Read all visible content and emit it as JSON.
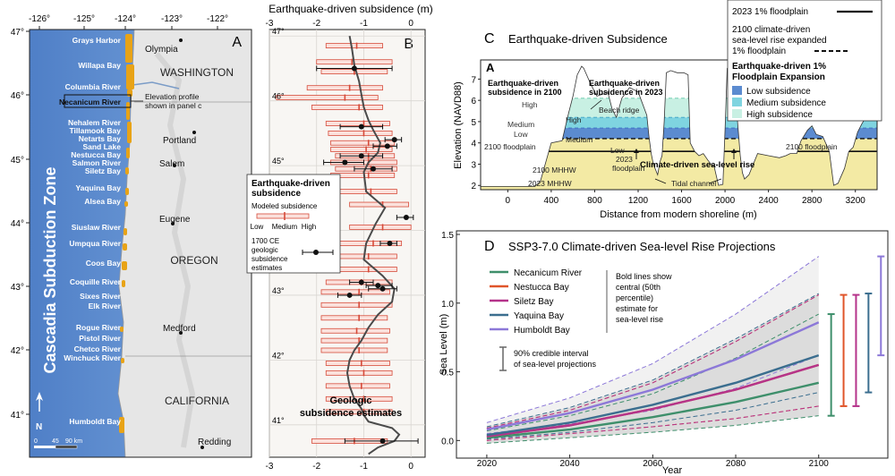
{
  "panel_a": {
    "label": "A",
    "lon_ticks": [
      "-126°",
      "-125°",
      "-124°",
      "-123°",
      "-122°"
    ],
    "lat_ticks": [
      "47°",
      "46°",
      "45°",
      "44°",
      "43°",
      "42°",
      "41°"
    ],
    "zone_label": "Cascadia Subduction Zone",
    "states": [
      "WASHINGTON",
      "OREGON",
      "CALIFORNIA"
    ],
    "cities": [
      {
        "name": "Olympia"
      },
      {
        "name": "Portland"
      },
      {
        "name": "Salem"
      },
      {
        "name": "Eugene"
      },
      {
        "name": "Medford"
      },
      {
        "name": "Redding"
      }
    ],
    "estuaries": [
      "Grays Harbor",
      "Willapa Bay",
      "Columbia River",
      "Necanicum River",
      "Nehalem River",
      "Tillamook Bay",
      "Netarts Bay",
      "Sand Lake",
      "Nestucca Bay",
      "Salmon River",
      "Siletz Bay",
      "Yaquina Bay",
      "Alsea Bay",
      "Siuslaw River",
      "Umpqua River",
      "Coos Bay",
      "Coquille River",
      "Sixes River",
      "Elk River",
      "Rogue River",
      "Pistol River",
      "Chetco River",
      "Winchuck River",
      "Humboldt Bay"
    ],
    "profile_note": "Elevation profile shown in panel c",
    "north": "N",
    "scale": [
      "0",
      "45",
      "90 km"
    ]
  },
  "panel_b": {
    "label": "B",
    "title": "Earthquake-driven subsidence (m)",
    "x_ticks": [
      "-3",
      "-2",
      "-1",
      "0"
    ],
    "legend_title": "Earthquake-driven subsidence",
    "legend_modeled": "Modeled subsidence",
    "legend_low": "Low",
    "legend_medium": "Medium",
    "legend_high": "High",
    "legend_geologic": "1700 CE geologic subsidence estimates",
    "annotation": "Geologic subsidence estimates"
  },
  "panel_c": {
    "label": "C",
    "title": "Earthquake-driven Subsidence",
    "ylabel": "Elevation (NAVD88)",
    "xlabel": "Distance from modern shoreline (m)",
    "end_a": "A",
    "end_b": "A’",
    "ann_2100": "Earthquake-driven subsidence in 2100",
    "ann_2023": "Earthquake-driven subsidence in 2023",
    "high": "High",
    "high2": "High",
    "medium": "Medium",
    "medium2": "Medium",
    "low": "Low",
    "low2": "Low",
    "beach_ridge": "Beach ridge",
    "floodplain_2100_left": "2100 floodplain",
    "floodplain_2100_right": "2100 floodplain",
    "floodplain_2023": "2023 floodplain",
    "slr": "Climate-driven sea-level rise",
    "mhhw_2100": "2100 MHHW",
    "mhhw_2023": "2023 MHHW",
    "tidal_channel": "Tidal channel",
    "legend": {
      "floodplain_2023": "2023 1% floodplain",
      "floodplain_2100": "2100 climate-driven sea-level rise expanded 1% floodplain",
      "expansion_title": "Earthquake-driven 1% Floodplain Expansion",
      "low": "Low subsidence",
      "medium": "Medium subsidence",
      "high": "High subsidence"
    }
  },
  "panel_d": {
    "label": "D",
    "legend_note": "Bold lines show central (50th percentile) estimate for sea-level rise",
    "interval_note": "90% credible interval of sea-level projections"
  },
  "colors": {
    "ocean": "#5b8fcf",
    "land": "#e8e8e8",
    "estuary": "#e8a317",
    "subsidence_bar": "#d64b3a",
    "low_fill": "#5b8bd0",
    "medium_fill": "#7fd4e0",
    "high_fill": "#c8f0e3",
    "ground_fill": "#f3eaa4"
  },
  "chart_data": [
    {
      "type": "line",
      "id": "panel_b_profile",
      "title": "Earthquake-driven subsidence (m)",
      "xlim": [
        -3,
        0.3
      ],
      "ylim": [
        40.5,
        47.1
      ],
      "y_ticks": [
        41,
        42,
        43,
        44,
        45,
        46,
        47
      ],
      "modeled_line": {
        "x": [
          -1.3,
          -1.25,
          -1.2,
          -1.1,
          -1.05,
          -1.0,
          -0.9,
          -0.8,
          -0.65,
          -0.7,
          -0.9,
          -1.0,
          -0.95,
          -0.55,
          -0.75,
          -0.95,
          -1.0,
          -0.6,
          -0.35,
          -0.4,
          -0.7,
          -0.9,
          -1.05,
          -1.2,
          -1.3,
          -1.35,
          -1.3,
          -1.2,
          -1.1,
          -1.05,
          -1.0,
          -0.9,
          -0.4,
          -0.25,
          -0.35,
          -0.7,
          -0.9
        ],
        "y": [
          47.0,
          46.8,
          46.55,
          46.3,
          46.1,
          45.9,
          45.7,
          45.55,
          45.35,
          45.2,
          45.05,
          44.9,
          44.6,
          44.35,
          44.1,
          43.8,
          43.55,
          43.3,
          43.1,
          42.9,
          42.7,
          42.5,
          42.3,
          42.15,
          42.0,
          41.8,
          41.6,
          41.4,
          41.3,
          41.25,
          41.15,
          41.05,
          40.95,
          40.85,
          40.75,
          40.65,
          40.55
        ]
      },
      "modeled_ranges": [
        {
          "lat": 46.85,
          "low": -1.8,
          "med": -1.15,
          "high": -0.6
        },
        {
          "lat": 46.6,
          "low": -2.0,
          "med": -1.25,
          "high": -0.4
        },
        {
          "lat": 46.45,
          "low": -1.9,
          "med": -1.2,
          "high": -0.5
        },
        {
          "lat": 46.2,
          "low": -2.2,
          "med": -1.3,
          "high": -0.6
        },
        {
          "lat": 46.05,
          "low": -2.85,
          "med": -1.4,
          "high": -0.7
        },
        {
          "lat": 45.9,
          "low": -2.1,
          "med": -1.1,
          "high": -0.6
        },
        {
          "lat": 45.65,
          "low": -1.8,
          "med": -1.0,
          "high": -0.45
        },
        {
          "lat": 45.5,
          "low": -1.75,
          "med": -1.0,
          "high": -0.4
        },
        {
          "lat": 45.35,
          "low": -1.7,
          "med": -0.9,
          "high": -0.35
        },
        {
          "lat": 45.25,
          "low": -1.7,
          "med": -0.95,
          "high": -0.4
        },
        {
          "lat": 45.15,
          "low": -1.6,
          "med": -0.9,
          "high": -0.35
        },
        {
          "lat": 45.05,
          "low": -1.7,
          "med": -0.9,
          "high": -0.3
        },
        {
          "lat": 44.95,
          "low": -1.6,
          "med": -0.85,
          "high": -0.3
        },
        {
          "lat": 44.85,
          "low": -1.7,
          "med": -0.9,
          "high": -0.35
        },
        {
          "lat": 44.6,
          "low": -1.6,
          "med": -0.85,
          "high": -0.3
        },
        {
          "lat": 44.4,
          "low": -1.3,
          "med": -0.6,
          "high": -0.05
        },
        {
          "lat": 44.05,
          "low": -1.3,
          "med": -0.6,
          "high": 0.0
        },
        {
          "lat": 43.8,
          "low": -1.6,
          "med": -0.8,
          "high": -0.2
        },
        {
          "lat": 43.6,
          "low": -1.7,
          "med": -0.9,
          "high": -0.3
        },
        {
          "lat": 43.4,
          "low": -1.6,
          "med": -0.9,
          "high": -0.3
        },
        {
          "lat": 43.2,
          "low": -1.8,
          "med": -1.05,
          "high": -0.4
        },
        {
          "lat": 43.05,
          "low": -1.9,
          "med": -1.1,
          "high": -0.45
        },
        {
          "lat": 42.85,
          "low": -1.9,
          "med": -1.1,
          "high": -0.4
        },
        {
          "lat": 42.65,
          "low": -1.9,
          "med": -1.1,
          "high": -0.5
        },
        {
          "lat": 42.45,
          "low": -1.9,
          "med": -1.15,
          "high": -0.45
        },
        {
          "lat": 42.3,
          "low": -1.9,
          "med": -1.1,
          "high": -0.5
        },
        {
          "lat": 42.15,
          "low": -1.9,
          "med": -1.1,
          "high": -0.5
        },
        {
          "lat": 41.95,
          "low": -1.8,
          "med": -1.05,
          "high": -0.45
        },
        {
          "lat": 41.8,
          "low": -1.8,
          "med": -1.0,
          "high": -0.4
        },
        {
          "lat": 41.6,
          "low": -1.8,
          "med": -1.05,
          "high": -0.45
        },
        {
          "lat": 41.4,
          "low": -1.8,
          "med": -1.0,
          "high": -0.4
        },
        {
          "lat": 41.2,
          "low": -1.8,
          "med": -1.0,
          "high": -0.4
        },
        {
          "lat": 40.75,
          "low": -2.1,
          "med": -1.2,
          "high": -0.5
        }
      ],
      "geologic_estimates": [
        {
          "lat": 46.5,
          "value": -1.2,
          "low": -2.0,
          "high": -0.4
        },
        {
          "lat": 45.6,
          "value": -1.05,
          "low": -1.5,
          "high": -0.6
        },
        {
          "lat": 45.4,
          "value": -0.35,
          "low": -0.55,
          "high": -0.2
        },
        {
          "lat": 45.3,
          "value": -0.5,
          "low": -0.8,
          "high": -0.3
        },
        {
          "lat": 45.15,
          "value": -1.05,
          "low": -1.5,
          "high": -0.6
        },
        {
          "lat": 45.05,
          "value": -1.4,
          "low": -1.85,
          "high": -1.0
        },
        {
          "lat": 44.95,
          "value": -0.8,
          "low": -1.2,
          "high": -0.4
        },
        {
          "lat": 44.2,
          "value": -0.1,
          "low": -0.3,
          "high": 0.05
        },
        {
          "lat": 43.8,
          "value": -0.45,
          "low": -0.65,
          "high": -0.3
        },
        {
          "lat": 43.2,
          "value": -1.05,
          "low": -1.3,
          "high": -0.8
        },
        {
          "lat": 43.15,
          "value": -0.7,
          "low": -0.95,
          "high": -0.4
        },
        {
          "lat": 43.1,
          "value": -0.6,
          "low": -0.9,
          "high": -0.3
        },
        {
          "lat": 43.0,
          "value": -1.3,
          "low": -1.55,
          "high": -1.05
        },
        {
          "lat": 40.75,
          "value": -0.6,
          "low": -1.4,
          "high": 0.15
        }
      ]
    },
    {
      "type": "area",
      "id": "panel_c_profile",
      "title": "Earthquake-driven Subsidence",
      "xlabel": "Distance from modern shoreline (m)",
      "ylabel": "Elevation (NAVD88)",
      "xlim": [
        -250,
        3400
      ],
      "ylim": [
        1.8,
        7.9
      ],
      "x_ticks": [
        0,
        400,
        800,
        1200,
        1600,
        2000,
        2400,
        2800,
        3200
      ],
      "y_ticks": [
        2,
        3,
        4,
        5,
        6,
        7
      ],
      "terrain": {
        "x": [
          -250,
          250,
          300,
          400,
          500,
          560,
          600,
          640,
          680,
          700,
          760,
          800,
          820,
          880,
          920,
          960,
          1000,
          1050,
          1120,
          1200,
          1280,
          1300,
          1320,
          1340,
          1380,
          1400,
          1420,
          1440,
          1460,
          1500,
          1560,
          1620,
          1660,
          1680,
          1720,
          1760,
          1800,
          1840,
          1870,
          1900,
          1940,
          1980,
          2000,
          2020,
          2050,
          2080,
          2100,
          2140,
          2160,
          2180,
          2220,
          2300,
          2400,
          2500,
          2560,
          2600,
          2660,
          2700,
          2760,
          2800,
          2840,
          2900,
          2960,
          3000,
          3040,
          3100,
          3140,
          3180,
          3220,
          3260,
          3320,
          3380,
          3400
        ],
        "y": [
          1.95,
          1.95,
          2.2,
          4.0,
          4.1,
          5.4,
          6.2,
          7.2,
          7.6,
          7.5,
          6.8,
          6.4,
          6.2,
          6.3,
          6.4,
          5.6,
          5.2,
          6.1,
          6.6,
          6.4,
          5.3,
          4.3,
          3.5,
          3.0,
          2.5,
          3.1,
          3.4,
          5.0,
          7.3,
          7.4,
          7.3,
          7.3,
          7.2,
          4.0,
          3.6,
          3.4,
          3.5,
          3.2,
          3.0,
          2.9,
          2.0,
          2.05,
          4.6,
          7.5,
          7.6,
          7.4,
          6.0,
          3.4,
          2.6,
          2.3,
          2.5,
          3.5,
          3.4,
          3.3,
          3.4,
          3.5,
          3.5,
          4.1,
          4.6,
          4.8,
          4.4,
          4.3,
          3.6,
          2.0,
          2.1,
          2.8,
          3.6,
          3.8,
          4.5,
          4.9,
          5.4,
          5.4,
          5.6
        ]
      },
      "levels": {
        "mhhw_2023": 2.2,
        "mhhw_2100": 2.9,
        "floodplain_2023": 3.6,
        "floodplain_2100": 4.2,
        "low": 4.7,
        "medium": 5.2,
        "high": 6.1
      }
    },
    {
      "type": "line",
      "id": "panel_d_slr",
      "title": "SSP3-7.0 Climate-driven Sea-level Rise Projections",
      "xlabel": "Year",
      "ylabel": "Sea Level (m)",
      "xlim": [
        2017,
        2113
      ],
      "ylim": [
        -0.05,
        1.5
      ],
      "x_ticks": [
        2020,
        2040,
        2060,
        2080,
        2100
      ],
      "y_ticks": [
        0.0,
        0.5,
        1.0,
        1.5
      ],
      "x": [
        2020,
        2040,
        2060,
        2080,
        2100
      ],
      "series": [
        {
          "name": "Necanicum River",
          "color": "#3e8f6b",
          "values": [
            0.02,
            0.08,
            0.17,
            0.28,
            0.42
          ],
          "lo": [
            -0.02,
            0.02,
            0.06,
            0.11,
            0.18
          ],
          "hi": [
            0.07,
            0.18,
            0.34,
            0.6,
            0.92
          ],
          "interval_x": 2103
        },
        {
          "name": "Nestucca Bay",
          "color": "#e0552a",
          "values": [
            0.03,
            0.11,
            0.23,
            0.37,
            0.55
          ],
          "lo": [
            0.0,
            0.05,
            0.1,
            0.16,
            0.25
          ],
          "hi": [
            0.09,
            0.22,
            0.42,
            0.72,
            1.06
          ],
          "interval_x": 2106
        },
        {
          "name": "Siletz Bay",
          "color": "#b5338a",
          "values": [
            0.03,
            0.11,
            0.23,
            0.37,
            0.55
          ],
          "lo": [
            0.0,
            0.05,
            0.1,
            0.16,
            0.25
          ],
          "hi": [
            0.09,
            0.22,
            0.42,
            0.72,
            1.06
          ],
          "interval_x": 2109
        },
        {
          "name": "Yaquina Bay",
          "color": "#3b6e8f",
          "values": [
            0.04,
            0.13,
            0.26,
            0.42,
            0.62
          ],
          "lo": [
            0.01,
            0.06,
            0.13,
            0.22,
            0.35
          ],
          "hi": [
            0.1,
            0.24,
            0.44,
            0.74,
            1.07
          ],
          "interval_x": 2112
        },
        {
          "name": "Humboldt Bay",
          "color": "#8c78d8",
          "values": [
            0.08,
            0.2,
            0.37,
            0.59,
            0.86
          ],
          "lo": [
            0.05,
            0.12,
            0.22,
            0.38,
            0.62
          ],
          "hi": [
            0.13,
            0.31,
            0.56,
            0.92,
            1.34
          ],
          "interval_x": 2115
        }
      ]
    }
  ]
}
